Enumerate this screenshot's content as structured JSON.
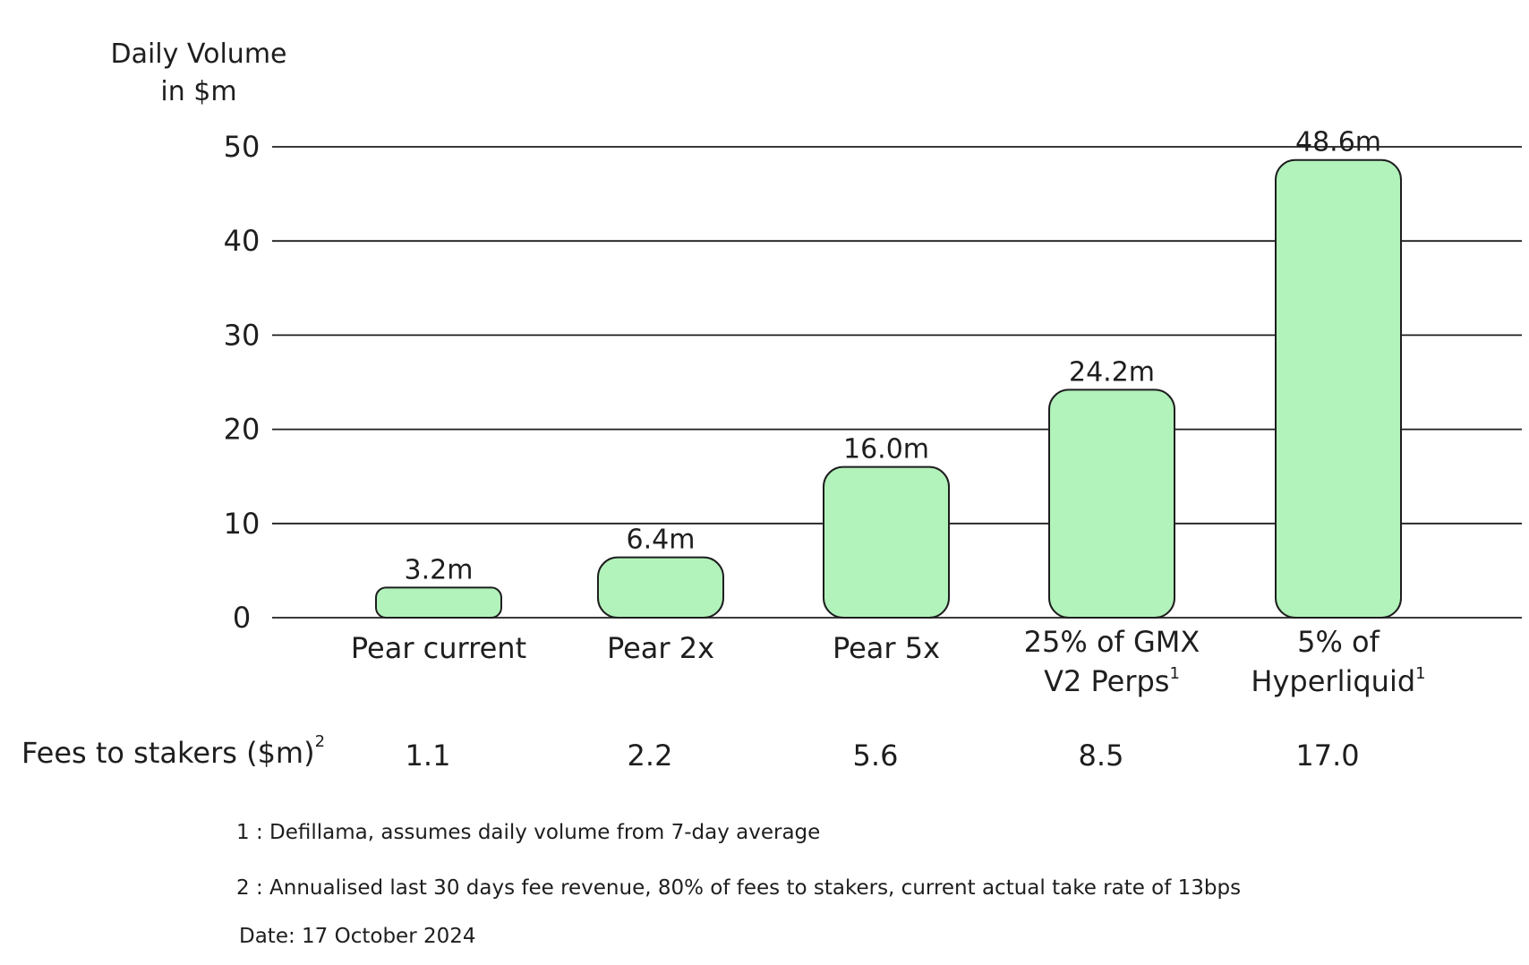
{
  "chart_data": {
    "type": "bar",
    "title": "",
    "ylabel_lines": [
      "Daily Volume",
      "in $m"
    ],
    "xlabel": "",
    "ylim": [
      0,
      50
    ],
    "yticks": [
      "0",
      "10",
      "20",
      "30",
      "40",
      "50"
    ],
    "grid": true,
    "categories": [
      {
        "lines": [
          "Pear current"
        ],
        "sup": ""
      },
      {
        "lines": [
          "Pear 2x"
        ],
        "sup": ""
      },
      {
        "lines": [
          "Pear 5x"
        ],
        "sup": ""
      },
      {
        "lines": [
          "25% of GMX",
          "V2 Perps"
        ],
        "sup": "1"
      },
      {
        "lines": [
          "5% of",
          "Hyperliquid"
        ],
        "sup": "1"
      }
    ],
    "values": [
      3.2,
      6.4,
      16.0,
      24.2,
      48.6
    ],
    "value_labels": [
      "3.2m",
      "6.4m",
      "16.0m",
      "24.2m",
      "48.6m"
    ],
    "colors": {
      "bar_fill": "#b2f2bb",
      "stroke": "#1e1e1e"
    }
  },
  "fees_row": {
    "label": "Fees to stakers ($m)",
    "label_sup": "2",
    "values": [
      "1.1",
      "2.2",
      "5.6",
      "8.5",
      "17.0"
    ]
  },
  "footnotes": [
    "1 : Defillama, assumes daily volume from 7-day average",
    "2 : Annualised last 30 days fee revenue, 80% of fees to stakers, current actual take rate of 13bps",
    "Date: 17 October 2024"
  ]
}
